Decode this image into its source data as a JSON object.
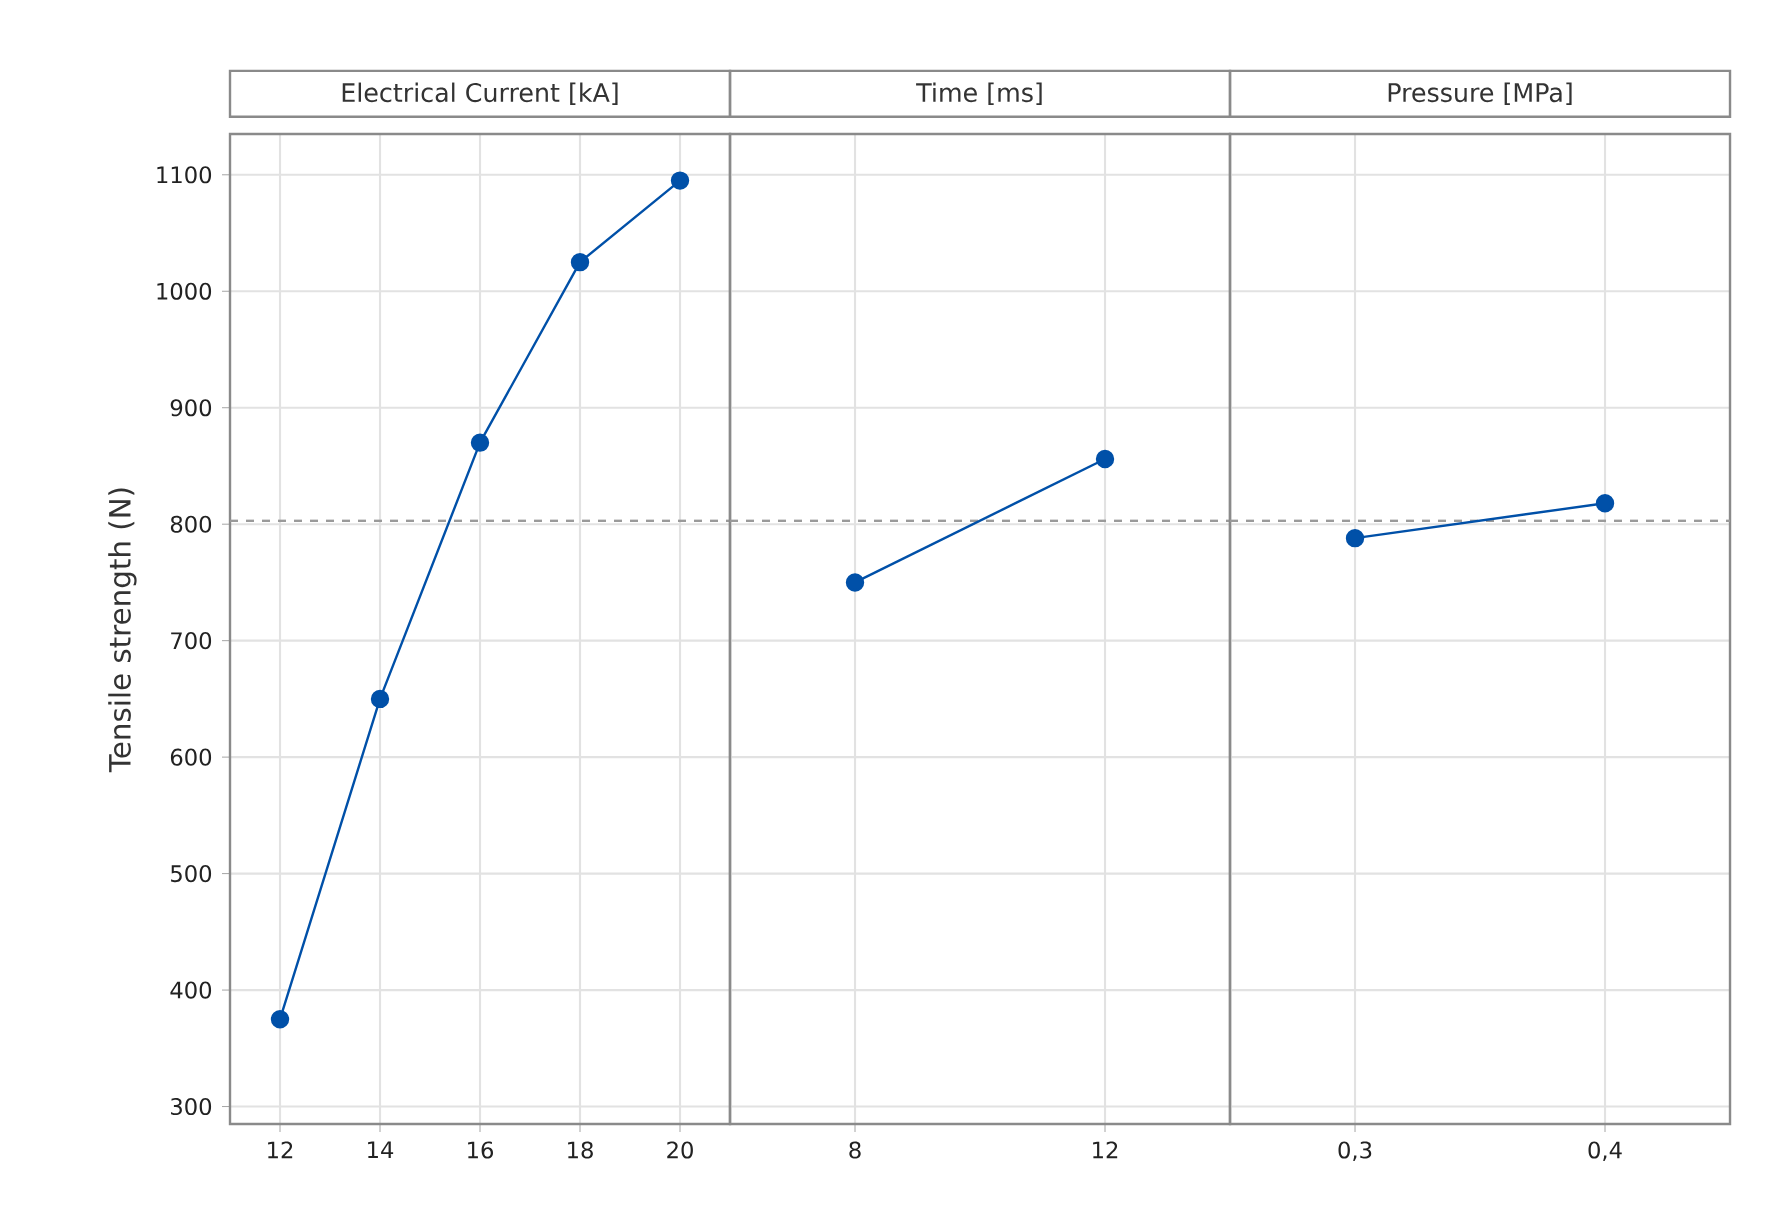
{
  "chart_data": [
    {
      "type": "line",
      "title": "Electrical Current [kA]",
      "ylabel": "Tensile strength (N)",
      "categories": [
        "12",
        "14",
        "16",
        "18",
        "20"
      ],
      "values": [
        375,
        650,
        870,
        1025,
        1095
      ],
      "color": "#0050a8",
      "marker": "circle",
      "line_style": "solid",
      "grid": true,
      "ylim": [
        285,
        1135
      ],
      "yticks": [
        300,
        400,
        500,
        600,
        700,
        800,
        900,
        1000,
        1100
      ],
      "ref_lines": [
        {
          "axis": "y",
          "value": 803,
          "color": "#9a9a9a",
          "line_style": "dashed"
        }
      ]
    },
    {
      "type": "line",
      "title": "Time [ms]",
      "categories": [
        "8",
        "12"
      ],
      "values": [
        750,
        856
      ],
      "color": "#0050a8",
      "marker": "circle",
      "line_style": "solid",
      "grid": true,
      "ylim": [
        285,
        1135
      ],
      "yticks": [
        300,
        400,
        500,
        600,
        700,
        800,
        900,
        1000,
        1100
      ],
      "tick_labels": "x",
      "ref_lines": [
        {
          "axis": "y",
          "value": 803,
          "color": "#9a9a9a",
          "line_style": "dashed"
        }
      ]
    },
    {
      "type": "line",
      "title": "Pressure [MPa]",
      "categories": [
        "0,3",
        "0,4"
      ],
      "values": [
        788,
        818
      ],
      "color": "#0050a8",
      "marker": "circle",
      "line_style": "solid",
      "grid": true,
      "ylim": [
        285,
        1135
      ],
      "yticks": [
        300,
        400,
        500,
        600,
        700,
        800,
        900,
        1000,
        1100
      ],
      "tick_labels": "x",
      "ref_lines": [
        {
          "axis": "y",
          "value": 803,
          "color": "#9a9a9a",
          "line_style": "dashed"
        }
      ]
    }
  ]
}
